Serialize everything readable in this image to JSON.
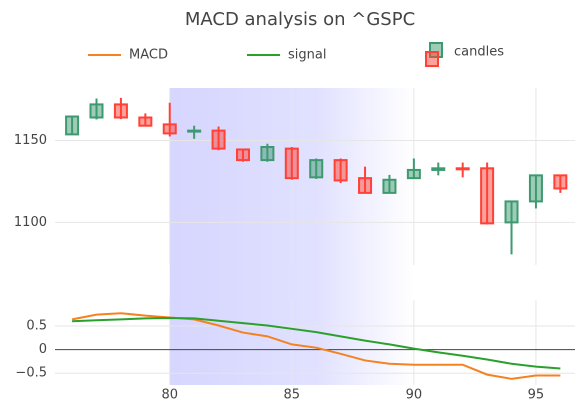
{
  "chart_data": [
    {
      "type": "candlestick",
      "title": "MACD analysis on ^GSPC",
      "name": "candles",
      "x": [
        76,
        77,
        78,
        79,
        80,
        81,
        82,
        83,
        84,
        85,
        86,
        87,
        88,
        89,
        90,
        91,
        92,
        93,
        94,
        95,
        96
      ],
      "open": [
        1153.7,
        1164,
        1172,
        1164,
        1159.8,
        1155.5,
        1156,
        1144.5,
        1138,
        1145,
        1127.5,
        1138,
        1127,
        1118,
        1127,
        1132,
        1133,
        1133,
        1100,
        1112.8,
        1128.7
      ],
      "high": [
        1164.6,
        1175.6,
        1176,
        1166.5,
        1173,
        1159,
        1158.5,
        1145,
        1148,
        1146,
        1139,
        1139,
        1134,
        1129,
        1139,
        1136.5,
        1136.5,
        1136.5,
        1112.8,
        1128.7,
        1128.7
      ],
      "low": [
        1153.7,
        1162.8,
        1163,
        1158.5,
        1152.4,
        1151,
        1144,
        1137,
        1137,
        1126,
        1126.5,
        1124,
        1117.7,
        1117.7,
        1127,
        1128.7,
        1127.5,
        1098.8,
        1080.5,
        1108.5,
        1118
      ],
      "close": [
        1164.6,
        1172,
        1164,
        1159,
        1154.3,
        1156,
        1145,
        1138,
        1146,
        1127,
        1138,
        1125.6,
        1118,
        1126,
        1132,
        1133,
        1132.5,
        1099.4,
        1112.8,
        1128.7,
        1120.7
      ],
      "increasing_color": "#3d9970",
      "decreasing_color": "#ff4136",
      "xlim": [
        75.3,
        96.6
      ],
      "xticks": [
        80,
        85,
        90,
        95
      ],
      "ylim": [
        1074,
        1182
      ],
      "yticks": [
        1100,
        1150
      ],
      "grid": true,
      "highlight": [
        80,
        90
      ],
      "highlight_color": "#c8c8ff"
    },
    {
      "type": "line",
      "x": [
        76,
        77,
        78,
        79,
        80,
        81,
        82,
        83,
        84,
        85,
        86,
        87,
        88,
        89,
        90,
        91,
        92,
        93,
        94,
        95,
        96
      ],
      "series": [
        {
          "name": "MACD",
          "color": "#f5821f",
          "values": [
            0.64,
            0.74,
            0.77,
            0.72,
            0.68,
            0.64,
            0.51,
            0.36,
            0.28,
            0.11,
            0.04,
            -0.09,
            -0.23,
            -0.3,
            -0.32,
            -0.32,
            -0.32,
            -0.53,
            -0.62,
            -0.55,
            -0.55
          ]
        },
        {
          "name": "signal",
          "color": "#2ca02c",
          "values": [
            0.6,
            0.62,
            0.64,
            0.66,
            0.67,
            0.66,
            0.61,
            0.56,
            0.51,
            0.44,
            0.37,
            0.28,
            0.19,
            0.11,
            0.02,
            -0.06,
            -0.13,
            -0.21,
            -0.3,
            -0.36,
            -0.4
          ]
        }
      ],
      "xlim": [
        75.3,
        96.6
      ],
      "xticks": [
        80,
        85,
        90,
        95
      ],
      "ylim": [
        -0.75,
        1.05
      ],
      "yticks": [
        {
          "value": -0.5,
          "label": "−0.5"
        },
        0,
        0.5
      ],
      "grid": true,
      "zeroline": true
    }
  ]
}
